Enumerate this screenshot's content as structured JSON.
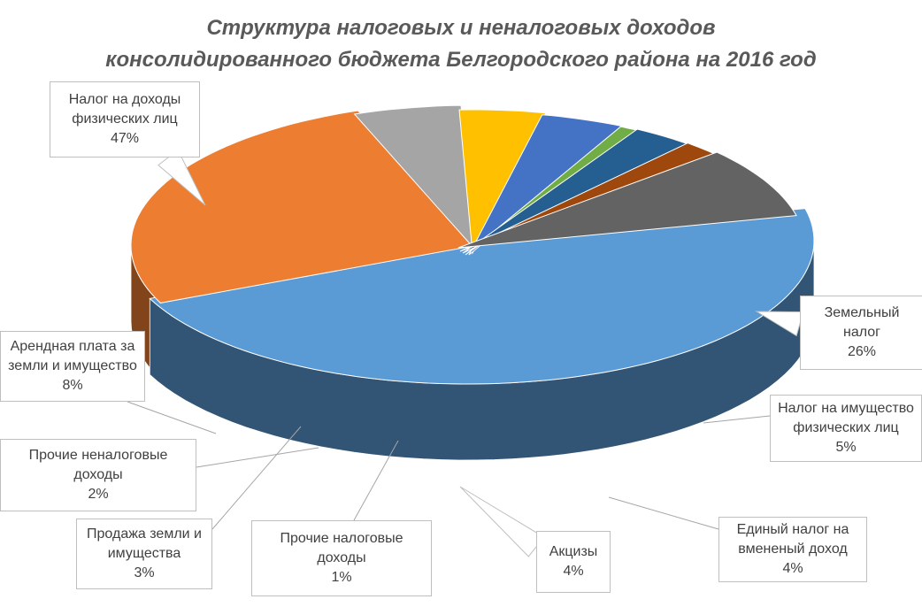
{
  "chart_data": {
    "type": "pie",
    "style": "3d-exploded",
    "title": "Структура налоговых и неналоговых доходов консолидированного бюджета Белгородского района на 2016 год",
    "title_lines": [
      "Структура налоговых и неналоговых доходов",
      "консолидированного бюджета Белгородского района на 2016 год"
    ],
    "slices": [
      {
        "label": "Налог на доходы физических лиц",
        "label_lines": [
          "Налог на доходы",
          "физических лиц"
        ],
        "value": 47,
        "value_label": "47%",
        "color": "#5B9BD5"
      },
      {
        "label": "Земельный налог",
        "label_lines": [
          "Земельный",
          "налог"
        ],
        "value": 26,
        "value_label": "26%",
        "color": "#ED7D31"
      },
      {
        "label": "Налог на имущество физических лиц",
        "label_lines": [
          "Налог на имущество",
          "физических лиц"
        ],
        "value": 5,
        "value_label": "5%",
        "color": "#A5A5A5"
      },
      {
        "label": "Единый налог на вмененый доход",
        "label_lines": [
          "Единый налог на",
          "вмененый доход"
        ],
        "value": 4,
        "value_label": "4%",
        "color": "#FFC000"
      },
      {
        "label": "Акцизы",
        "label_lines": [
          "Акцизы"
        ],
        "value": 4,
        "value_label": "4%",
        "color": "#4472C4"
      },
      {
        "label": "Прочие налоговые доходы",
        "label_lines": [
          "Прочие налоговые",
          "доходы"
        ],
        "value": 1,
        "value_label": "1%",
        "color": "#70AD47"
      },
      {
        "label": "Продажа земли и имущества",
        "label_lines": [
          "Продажа земли и",
          "имущества"
        ],
        "value": 3,
        "value_label": "3%",
        "color": "#255E91"
      },
      {
        "label": "Прочие неналоговые доходы",
        "label_lines": [
          "Прочие неналоговые",
          "доходы"
        ],
        "value": 2,
        "value_label": "2%",
        "color": "#9E480E"
      },
      {
        "label": "Арендная плата за земли и имущество",
        "label_lines": [
          "Арендная плата за",
          "земли и имущество"
        ],
        "value": 8,
        "value_label": "8%",
        "color": "#636363"
      }
    ]
  }
}
